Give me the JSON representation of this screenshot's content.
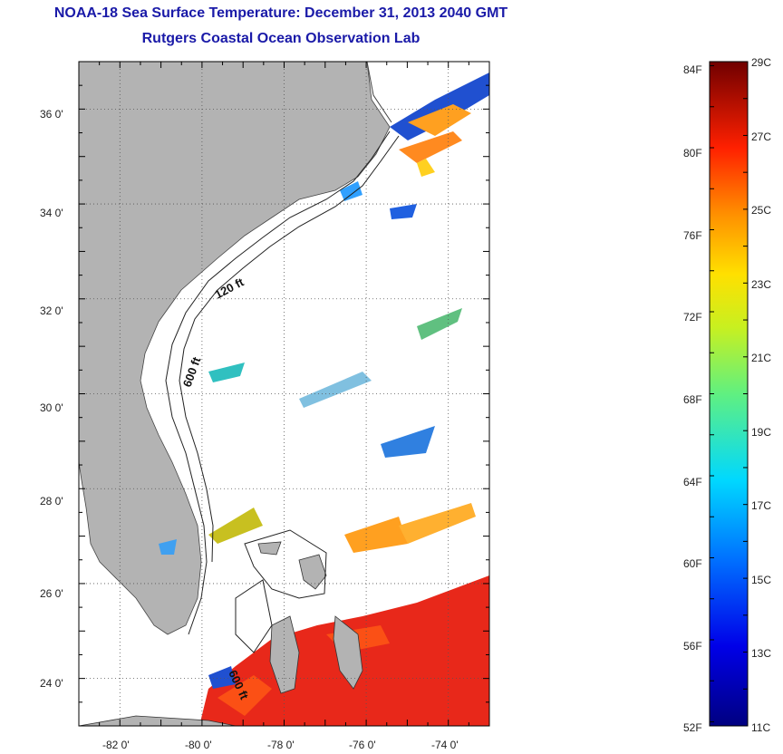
{
  "header": {
    "title": "NOAA-18 Sea Surface Temperature:  December 31, 2013 2040 GMT",
    "subtitle": "Rutgers Coastal Ocean Observation Lab"
  },
  "map": {
    "lon_range": [
      -83,
      -73
    ],
    "lat_range": [
      23,
      37
    ],
    "lon_ticks": [
      "-82 0'",
      "-80 0'",
      "-78 0'",
      "-76 0'",
      "-74 0'"
    ],
    "lat_ticks": [
      "36 0'",
      "34 0'",
      "32 0'",
      "30 0'",
      "28 0'",
      "26 0'",
      "24 0'"
    ],
    "contour_labels": [
      "120 ft",
      "600 ft",
      "600 ft"
    ],
    "colors": {
      "land": "#b3b3b3",
      "cloud": "#ffffff",
      "gulfstream": "#e8281a"
    }
  },
  "colorbar": {
    "f_labels": [
      "84F",
      "80F",
      "76F",
      "72F",
      "68F",
      "64F",
      "60F",
      "56F",
      "52F"
    ],
    "c_labels": [
      "29C",
      "27C",
      "25C",
      "23C",
      "21C",
      "19C",
      "17C",
      "15C",
      "13C",
      "11C"
    ],
    "range_c": [
      11,
      29
    ]
  }
}
